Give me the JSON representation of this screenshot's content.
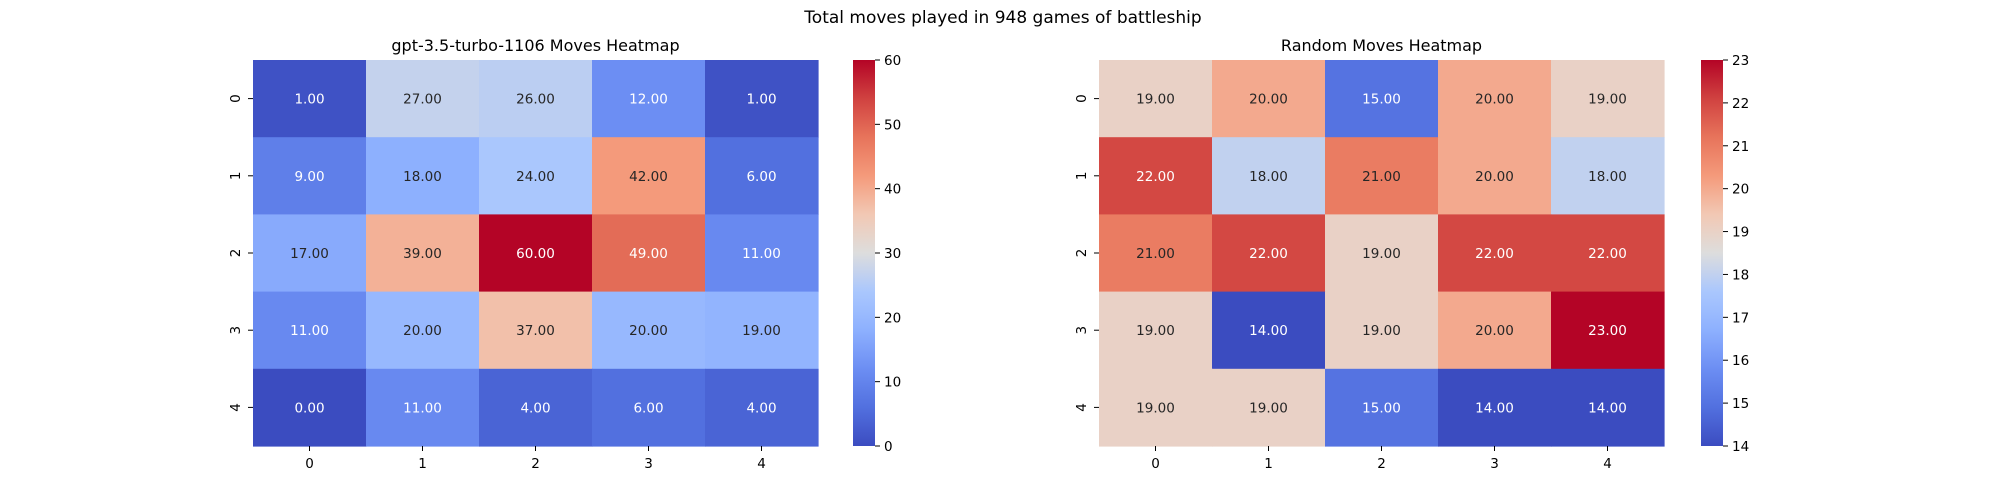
{
  "figure": {
    "suptitle": "Total moves played in 948 games of battleship"
  },
  "chart_data": [
    {
      "type": "heatmap",
      "title": "gpt-3.5-turbo-1106 Moves Heatmap",
      "xlabel": "",
      "ylabel": "",
      "x_categories": [
        "0",
        "1",
        "2",
        "3",
        "4"
      ],
      "y_categories": [
        "0",
        "1",
        "2",
        "3",
        "4"
      ],
      "values": [
        [
          1,
          27,
          26,
          12,
          1
        ],
        [
          9,
          18,
          24,
          42,
          6
        ],
        [
          17,
          39,
          60,
          49,
          11
        ],
        [
          11,
          20,
          37,
          20,
          19
        ],
        [
          0,
          11,
          4,
          6,
          4
        ]
      ],
      "value_format": "0.00",
      "colormap": "coolwarm",
      "color_range": [
        0,
        60
      ],
      "colorbar_ticks": [
        0,
        10,
        20,
        30,
        40,
        50,
        60
      ],
      "grid": false
    },
    {
      "type": "heatmap",
      "title": "Random Moves Heatmap",
      "xlabel": "",
      "ylabel": "",
      "x_categories": [
        "0",
        "1",
        "2",
        "3",
        "4"
      ],
      "y_categories": [
        "0",
        "1",
        "2",
        "3",
        "4"
      ],
      "values": [
        [
          19,
          20,
          15,
          20,
          19
        ],
        [
          22,
          18,
          21,
          20,
          18
        ],
        [
          21,
          22,
          19,
          22,
          22
        ],
        [
          19,
          14,
          19,
          20,
          23
        ],
        [
          19,
          19,
          15,
          14,
          14
        ]
      ],
      "value_format": "0.00",
      "colormap": "coolwarm",
      "color_range": [
        14,
        23
      ],
      "colorbar_ticks": [
        14,
        15,
        16,
        17,
        18,
        19,
        20,
        21,
        22,
        23
      ],
      "grid": false
    }
  ]
}
